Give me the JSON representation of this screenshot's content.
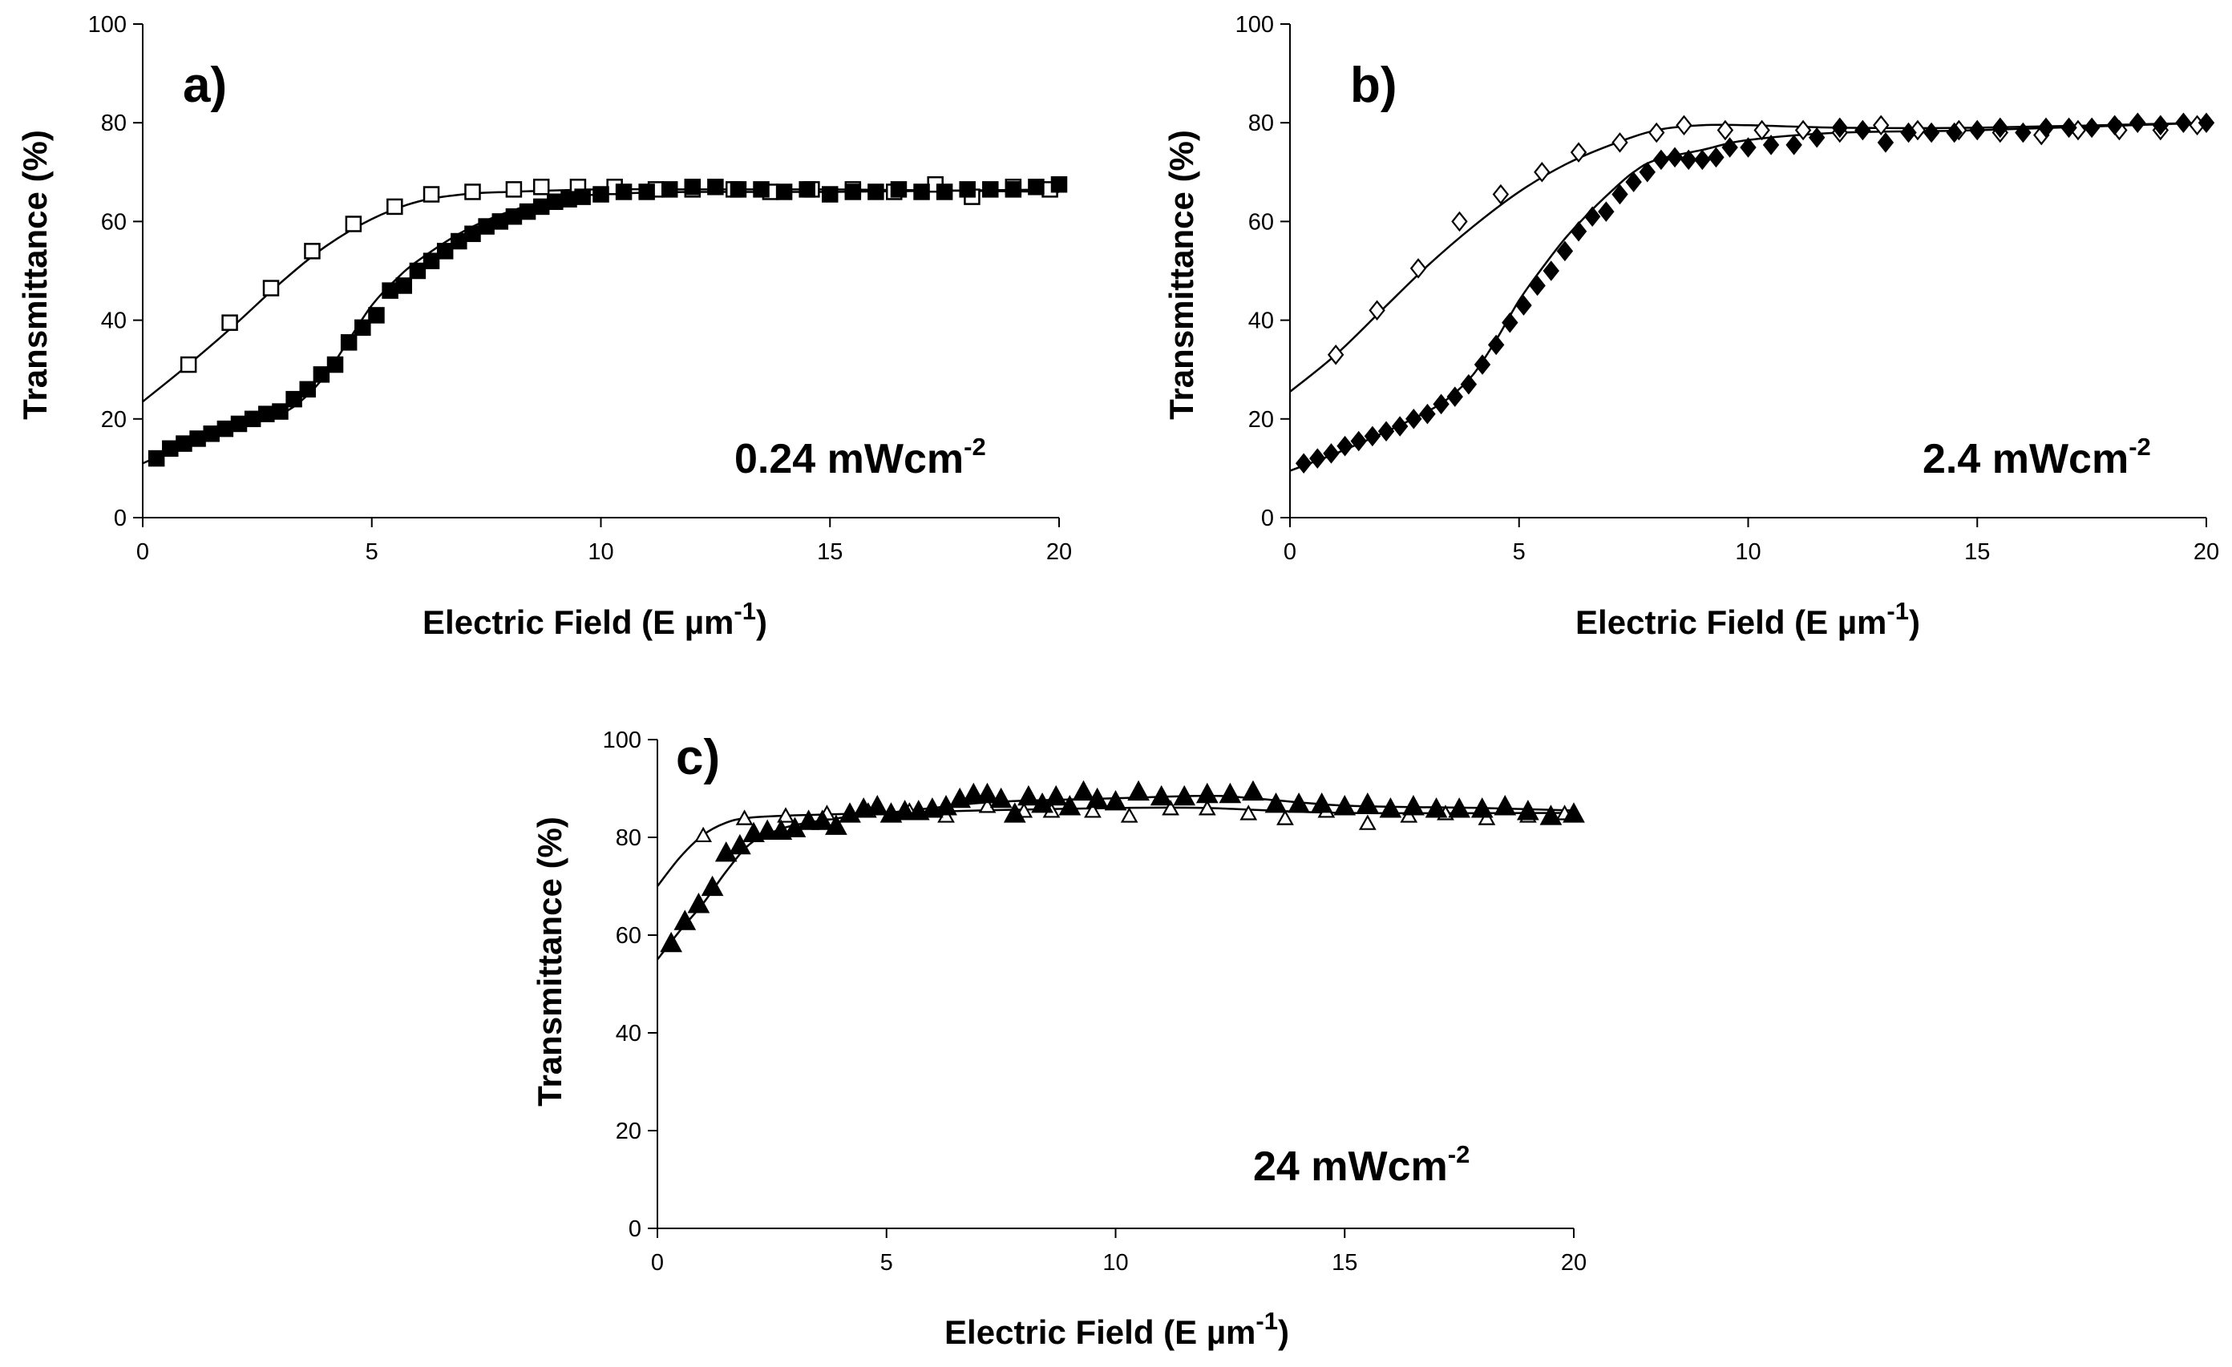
{
  "figure": {
    "shared_xlabel": "Electric Field (E µm",
    "shared_xlabel_exp": "-1",
    "shared_xlabel_close": ")",
    "shared_ylabel": "Transmittance (%)"
  },
  "chart_data": [
    {
      "type": "scatter",
      "panel_label": "a)",
      "annotation": "0.24 mWcm",
      "annotation_exp": "-2",
      "xlabel": "Electric Field (E µm-1)",
      "ylabel": "Transmittance (%)",
      "xlim": [
        0,
        20
      ],
      "ylim": [
        0,
        100
      ],
      "xticks": [
        "0",
        "5",
        "10",
        "15",
        "20"
      ],
      "yticks": [
        "0",
        "20",
        "40",
        "60",
        "80",
        "100"
      ],
      "series": [
        {
          "name": "open",
          "marker": "square-open",
          "x": [
            1,
            1.9,
            2.8,
            3.7,
            4.6,
            5.5,
            6.3,
            7.2,
            8.1,
            8.7,
            9.5,
            10.3,
            11.2,
            12,
            12.9,
            13.7,
            14.6,
            15.5,
            16.4,
            17.3,
            18.1,
            19,
            19.8
          ],
          "y": [
            31,
            39.5,
            46.5,
            54,
            59.5,
            63,
            65.5,
            66,
            66.5,
            67,
            67,
            67,
            66.5,
            66.5,
            66.5,
            66,
            66.5,
            66.5,
            66,
            67.5,
            65,
            67,
            66.5
          ],
          "fit_x": [
            0,
            1,
            2,
            3,
            4,
            5,
            6,
            7,
            8,
            10,
            12,
            15,
            20
          ],
          "fit_y": [
            23.5,
            31,
            39,
            47.5,
            55,
            60.5,
            64,
            65.5,
            66,
            66.5,
            66.5,
            66.5,
            66
          ]
        },
        {
          "name": "filled",
          "marker": "square-filled",
          "x": [
            0.3,
            0.6,
            0.9,
            1.2,
            1.5,
            1.8,
            2.1,
            2.4,
            2.7,
            3,
            3.3,
            3.6,
            3.9,
            4.2,
            4.5,
            4.8,
            5.1,
            5.4,
            5.7,
            6,
            6.3,
            6.6,
            6.9,
            7.2,
            7.5,
            7.8,
            8.1,
            8.4,
            8.7,
            9,
            9.3,
            9.6,
            10,
            10.5,
            11,
            11.5,
            12,
            12.5,
            13,
            13.5,
            14,
            14.5,
            15,
            15.5,
            16,
            16.5,
            17,
            17.5,
            18,
            18.5,
            19,
            19.5,
            20
          ],
          "y": [
            12,
            14,
            15,
            16,
            17,
            18,
            19,
            20,
            21,
            21.5,
            24,
            26,
            29,
            31,
            35.5,
            38.5,
            41,
            46,
            47,
            50,
            52,
            54,
            56,
            57.5,
            59,
            60,
            61,
            62,
            63,
            64,
            64.5,
            65,
            65.5,
            66,
            66,
            66.5,
            67,
            67,
            66.5,
            66.5,
            66,
            66.5,
            65.5,
            66,
            66,
            66.5,
            66,
            66,
            66.5,
            66.5,
            66.5,
            67,
            67.5
          ],
          "fit_x": [
            0,
            1,
            2,
            3,
            3.5,
            4,
            4.5,
            5,
            5.5,
            6,
            7,
            8,
            9,
            10,
            12,
            15,
            20
          ],
          "fit_y": [
            11,
            15,
            18,
            21,
            24,
            29,
            36,
            43,
            48,
            52,
            58,
            62,
            64.5,
            65.5,
            66,
            66,
            66.5
          ]
        }
      ]
    },
    {
      "type": "scatter",
      "panel_label": "b)",
      "annotation": "2.4 mWcm",
      "annotation_exp": "-2",
      "xlabel": "Electric Field (E µm-1)",
      "ylabel": "Transmittance (%)",
      "xlim": [
        0,
        20
      ],
      "ylim": [
        0,
        100
      ],
      "xticks": [
        "0",
        "5",
        "10",
        "15",
        "20"
      ],
      "yticks": [
        "0",
        "20",
        "40",
        "60",
        "80",
        "100"
      ],
      "series": [
        {
          "name": "open",
          "marker": "diamond-open",
          "x": [
            1,
            1.9,
            2.8,
            3.7,
            4.6,
            5.5,
            6.3,
            7.2,
            8,
            8.6,
            9.5,
            10.3,
            11.2,
            12,
            12.9,
            13.7,
            14.6,
            15.5,
            16.4,
            17.2,
            18.1,
            19,
            19.8
          ],
          "y": [
            33,
            42,
            50.5,
            60,
            65.5,
            70,
            74,
            76,
            78,
            79.5,
            78.5,
            78.5,
            78.5,
            78,
            79.5,
            78.5,
            78.5,
            78,
            77.5,
            78.5,
            78.5,
            78.5,
            79.5
          ],
          "fit_x": [
            0,
            1,
            2,
            3,
            4,
            5,
            6,
            7,
            8,
            9,
            10,
            12,
            15,
            20
          ],
          "fit_y": [
            25.5,
            33,
            42,
            51,
            59,
            66,
            71.5,
            75.5,
            78.5,
            79.5,
            79.5,
            79,
            79,
            80
          ]
        },
        {
          "name": "filled",
          "marker": "diamond-filled",
          "x": [
            0.3,
            0.6,
            0.9,
            1.2,
            1.5,
            1.8,
            2.1,
            2.4,
            2.7,
            3,
            3.3,
            3.6,
            3.9,
            4.2,
            4.5,
            4.8,
            5.1,
            5.4,
            5.7,
            6,
            6.3,
            6.6,
            6.9,
            7.2,
            7.5,
            7.8,
            8.1,
            8.4,
            8.7,
            9,
            9.3,
            9.6,
            10,
            10.5,
            11,
            11.5,
            12,
            12.5,
            13,
            13.5,
            14,
            14.5,
            15,
            15.5,
            16,
            16.5,
            17,
            17.5,
            18,
            18.5,
            19,
            19.5,
            20
          ],
          "y": [
            11,
            12,
            13,
            14.5,
            15.5,
            16.5,
            17.5,
            18.5,
            20,
            21,
            23,
            24.5,
            27,
            31,
            35,
            39.5,
            43,
            47,
            50,
            54,
            58,
            61,
            62,
            65.5,
            68,
            70,
            72.5,
            73,
            72.5,
            72.5,
            73,
            75,
            75,
            75.5,
            75.5,
            77,
            79,
            78.5,
            76,
            78,
            78,
            78,
            78.5,
            79,
            78,
            79,
            79,
            79,
            79.5,
            80,
            79.5,
            80,
            80
          ],
          "fit_x": [
            0,
            1,
            2,
            3,
            3.5,
            4,
            4.5,
            5,
            5.5,
            6,
            6.5,
            7,
            7.5,
            8,
            9,
            10,
            12,
            15,
            20
          ],
          "fit_y": [
            9.5,
            13,
            17,
            21.5,
            24.5,
            29,
            36,
            44,
            50.5,
            56.5,
            61.5,
            66,
            70,
            72.5,
            74.5,
            76.5,
            78,
            78.5,
            80
          ]
        }
      ]
    },
    {
      "type": "scatter",
      "panel_label": "c)",
      "annotation": "24 mWcm",
      "annotation_exp": "-2",
      "xlabel": "Electric Field (E µm-1)",
      "ylabel": "Transmittance (%)",
      "xlim": [
        0,
        20
      ],
      "ylim": [
        0,
        100
      ],
      "xticks": [
        "0",
        "5",
        "10",
        "15",
        "20"
      ],
      "yticks": [
        "0",
        "20",
        "40",
        "60",
        "80",
        "100"
      ],
      "series": [
        {
          "name": "open",
          "marker": "triangle-open",
          "x": [
            1,
            1.9,
            2.8,
            3.7,
            4.6,
            5.5,
            6.3,
            7.2,
            8,
            8.6,
            9.5,
            10.3,
            11.2,
            12,
            12.9,
            13.7,
            14.6,
            15.5,
            16.4,
            17.2,
            18.1,
            19,
            19.8
          ],
          "y": [
            80.5,
            84,
            84.5,
            85,
            85.5,
            85.5,
            84.5,
            86.5,
            85.5,
            85.5,
            85.5,
            84.5,
            86,
            86,
            85,
            84,
            85.5,
            83,
            84.5,
            85,
            84,
            84.5,
            85
          ],
          "fit_x": [
            0,
            0.5,
            1,
            1.5,
            2,
            3,
            5,
            7,
            10,
            12,
            15,
            20
          ],
          "fit_y": [
            70,
            76,
            80.5,
            83,
            84,
            84.5,
            85,
            85.5,
            86,
            86,
            85,
            85
          ]
        },
        {
          "name": "filled",
          "marker": "triangle-filled",
          "x": [
            0.3,
            0.6,
            0.9,
            1.2,
            1.5,
            1.8,
            2.1,
            2.4,
            2.7,
            3,
            3.3,
            3.6,
            3.9,
            4.2,
            4.5,
            4.8,
            5.1,
            5.4,
            5.7,
            6,
            6.3,
            6.6,
            6.9,
            7.2,
            7.5,
            7.8,
            8.1,
            8.4,
            8.7,
            9,
            9.3,
            9.6,
            10,
            10.5,
            11,
            11.5,
            12,
            12.5,
            13,
            13.5,
            14,
            14.5,
            15,
            15.5,
            16,
            16.5,
            17,
            17.5,
            18,
            18.5,
            19,
            19.5,
            20
          ],
          "y": [
            58.5,
            63,
            66.5,
            70,
            77,
            78.5,
            81,
            81.5,
            81.5,
            82,
            83.5,
            83.5,
            82.5,
            85,
            86,
            86.5,
            85,
            85.5,
            85.5,
            86,
            86.5,
            88,
            89,
            89,
            88,
            85,
            88.5,
            87,
            88.5,
            86.5,
            89.5,
            88,
            87.5,
            89.5,
            88.5,
            88.5,
            89,
            89,
            89.5,
            87,
            87,
            87,
            86.5,
            87,
            86,
            86.5,
            86,
            86,
            86,
            86.5,
            85.5,
            84.5,
            85
          ],
          "fit_x": [
            0,
            0.5,
            1,
            1.5,
            2,
            2.5,
            3,
            4,
            5,
            6,
            7,
            8,
            10,
            12,
            13,
            15,
            18,
            20
          ],
          "fit_y": [
            55,
            61,
            66.5,
            73,
            78.5,
            81,
            82.5,
            84,
            85,
            86,
            87,
            87.5,
            88,
            88.5,
            88,
            86.5,
            86,
            85.5
          ]
        }
      ]
    }
  ]
}
